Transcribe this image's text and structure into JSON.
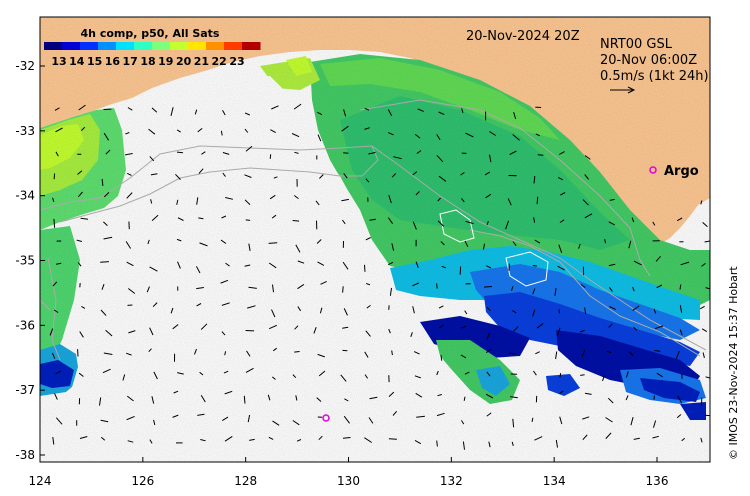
{
  "map": {
    "colorbar_title": "4h comp, p50, All Sats",
    "colorbar_ticks": [
      "13",
      "14",
      "15",
      "16",
      "17",
      "18",
      "19",
      "20",
      "21",
      "22",
      "23"
    ],
    "colorbar_colors": [
      "#00007f",
      "#0000d4",
      "#0030ff",
      "#0090ff",
      "#00e0ff",
      "#30ffc4",
      "#7cff7a",
      "#c4ff30",
      "#ffe500",
      "#ff9100",
      "#ff3b00",
      "#b20000"
    ],
    "date_label": "20-Nov-2024 20Z",
    "product_line1": "NRT00 GSL",
    "product_line2": "20-Nov 06:00Z",
    "scale_label": "0.5m/s (1kt 24h)",
    "argo_label": "Argo",
    "credit": "© IMOS 23-Nov-2024 15:37 Hobart",
    "land_color": "#fdc893",
    "argo_color": "#e000e0",
    "x_ticks": [
      124,
      126,
      128,
      130,
      132,
      134,
      136
    ],
    "x_tick_labels": [
      "124",
      "126",
      "128",
      "130",
      "132",
      "134",
      "136"
    ],
    "y_ticks": [
      -32,
      -33,
      -34,
      -35,
      -36,
      -37,
      -38
    ],
    "y_tick_labels": [
      "-32",
      "-33",
      "-34",
      "-35",
      "-36",
      "-37",
      "-38"
    ]
  }
}
